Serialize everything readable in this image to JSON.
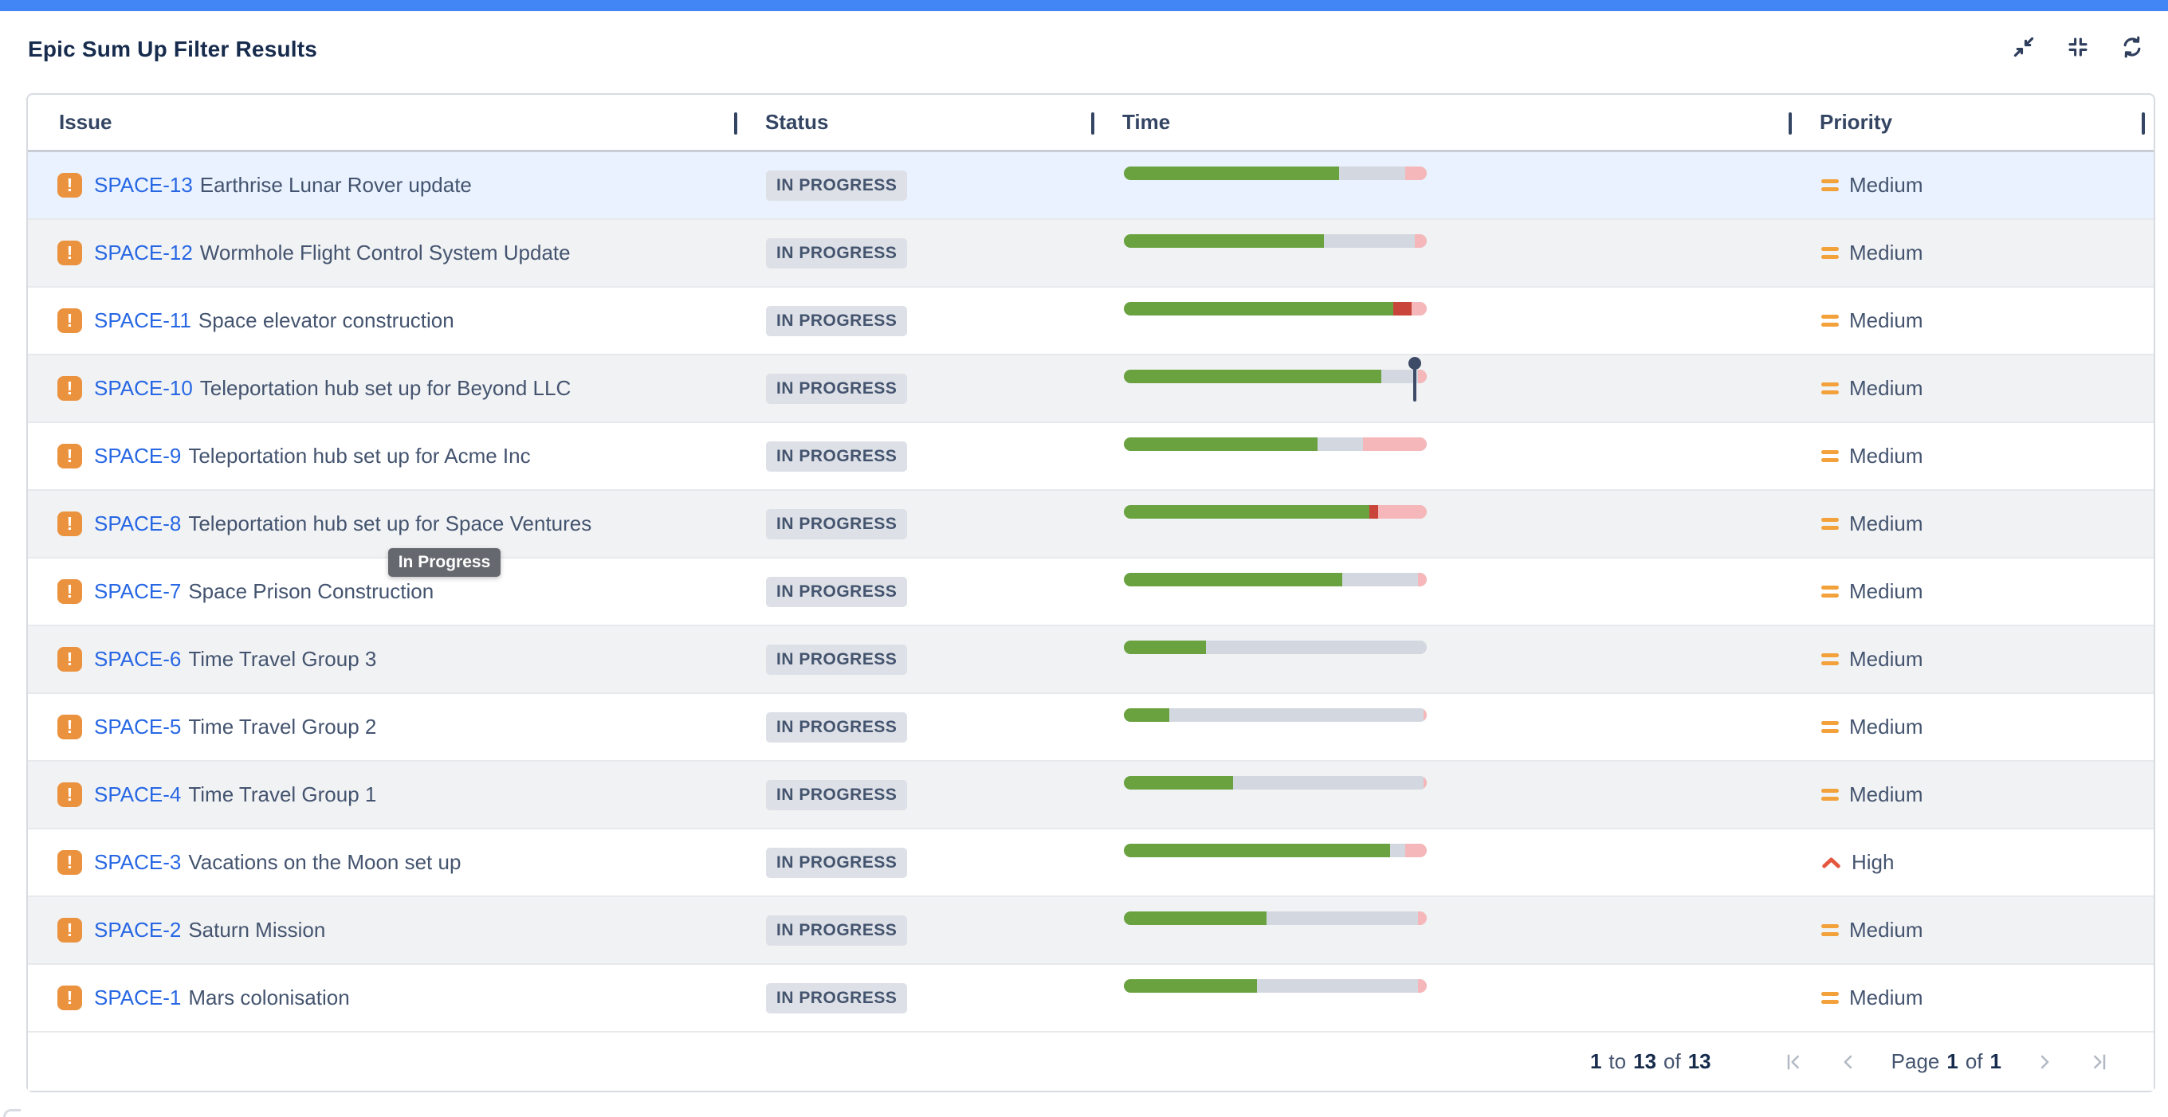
{
  "colors": {
    "accent_bar": "#4285F4",
    "title_text": "#172B4D",
    "header_text": "#344563",
    "link_blue": "#2767E4",
    "summary_text": "#44546F",
    "row_alt_bg": "#F1F2F4",
    "row_selected_bg": "#E9F2FE",
    "badge_bg": "#DDE0E6",
    "badge_text": "#44546F",
    "epic_icon_bg": "#EB923F",
    "bar_green": "#69A23F",
    "bar_gray": "#D3D7DF",
    "bar_pink": "#F5B7B9",
    "bar_red": "#C9453C",
    "pin": "#3D4B66",
    "priority_medium": "#F2A13B",
    "priority_high": "#E4573F",
    "pag_icon": "#B3BAC5",
    "tooltip_bg": "#65686E",
    "border": "#D8DBE2",
    "row_border": "#E7E9ED",
    "header_border": "#C9CDD4",
    "top_icon": "#2E3E5C"
  },
  "header": {
    "title": "Epic Sum Up Filter Results",
    "icons": [
      "exit-fullscreen-icon",
      "collapse-all-icon",
      "refresh-icon"
    ]
  },
  "table": {
    "columns": [
      {
        "label": "Issue"
      },
      {
        "label": "Status"
      },
      {
        "label": "Time"
      },
      {
        "label": "Priority"
      }
    ],
    "rows": [
      {
        "key": "SPACE-13",
        "summary": "Earthrise Lunar Rover update",
        "status": "IN PROGRESS",
        "priority": "Medium",
        "selected": true,
        "segments": [
          {
            "color": "green",
            "pct": 71
          },
          {
            "color": "gray",
            "pct": 22
          },
          {
            "color": "pink",
            "pct": 7
          }
        ]
      },
      {
        "key": "SPACE-12",
        "summary": "Wormhole Flight Control System Update",
        "status": "IN PROGRESS",
        "priority": "Medium",
        "segments": [
          {
            "color": "green",
            "pct": 66
          },
          {
            "color": "gray",
            "pct": 30
          },
          {
            "color": "pink",
            "pct": 4
          }
        ]
      },
      {
        "key": "SPACE-11",
        "summary": "Space elevator construction",
        "status": "IN PROGRESS",
        "priority": "Medium",
        "segments": [
          {
            "color": "green",
            "pct": 89
          },
          {
            "color": "red",
            "pct": 6
          },
          {
            "color": "pink",
            "pct": 5
          }
        ]
      },
      {
        "key": "SPACE-10",
        "summary": "Teleportation hub set up for Beyond LLC",
        "status": "IN PROGRESS",
        "priority": "Medium",
        "marker_pct": 96,
        "segments": [
          {
            "color": "green",
            "pct": 85
          },
          {
            "color": "gray",
            "pct": 12
          },
          {
            "color": "pink",
            "pct": 3
          }
        ]
      },
      {
        "key": "SPACE-9",
        "summary": "Teleportation hub set up for Acme Inc",
        "status": "IN PROGRESS",
        "priority": "Medium",
        "segments": [
          {
            "color": "green",
            "pct": 64
          },
          {
            "color": "gray",
            "pct": 15
          },
          {
            "color": "pink",
            "pct": 21
          }
        ]
      },
      {
        "key": "SPACE-8",
        "summary": "Teleportation hub set up for Space Ventures",
        "status": "IN PROGRESS",
        "priority": "Medium",
        "segments": [
          {
            "color": "green",
            "pct": 81
          },
          {
            "color": "red",
            "pct": 3
          },
          {
            "color": "pink",
            "pct": 16
          }
        ]
      },
      {
        "key": "SPACE-7",
        "summary": "Space Prison Construction",
        "status": "IN PROGRESS",
        "priority": "Medium",
        "segments": [
          {
            "color": "green",
            "pct": 72
          },
          {
            "color": "gray",
            "pct": 25
          },
          {
            "color": "pink",
            "pct": 3
          }
        ]
      },
      {
        "key": "SPACE-6",
        "summary": "Time Travel Group 3",
        "status": "IN PROGRESS",
        "priority": "Medium",
        "segments": [
          {
            "color": "green",
            "pct": 27
          },
          {
            "color": "gray",
            "pct": 73
          }
        ]
      },
      {
        "key": "SPACE-5",
        "summary": "Time Travel Group 2",
        "status": "IN PROGRESS",
        "priority": "Medium",
        "segments": [
          {
            "color": "green",
            "pct": 15
          },
          {
            "color": "gray",
            "pct": 84
          },
          {
            "color": "pink",
            "pct": 1
          }
        ]
      },
      {
        "key": "SPACE-4",
        "summary": "Time Travel Group 1",
        "status": "IN PROGRESS",
        "priority": "Medium",
        "segments": [
          {
            "color": "green",
            "pct": 36
          },
          {
            "color": "gray",
            "pct": 63
          },
          {
            "color": "pink",
            "pct": 1
          }
        ]
      },
      {
        "key": "SPACE-3",
        "summary": "Vacations on the Moon set up",
        "status": "IN PROGRESS",
        "priority": "High",
        "segments": [
          {
            "color": "green",
            "pct": 88
          },
          {
            "color": "gray",
            "pct": 5
          },
          {
            "color": "pink",
            "pct": 7
          }
        ]
      },
      {
        "key": "SPACE-2",
        "summary": "Saturn Mission",
        "status": "IN PROGRESS",
        "priority": "Medium",
        "segments": [
          {
            "color": "green",
            "pct": 47
          },
          {
            "color": "gray",
            "pct": 50
          },
          {
            "color": "pink",
            "pct": 3
          }
        ]
      },
      {
        "key": "SPACE-1",
        "summary": "Mars colonisation",
        "status": "IN PROGRESS",
        "priority": "Medium",
        "segments": [
          {
            "color": "green",
            "pct": 44
          },
          {
            "color": "gray",
            "pct": 53
          },
          {
            "color": "pink",
            "pct": 3
          }
        ]
      }
    ]
  },
  "tooltip": {
    "text": "In Progress"
  },
  "pagination": {
    "start": "1",
    "to_word": "to",
    "end": "13",
    "of_word": "of",
    "total": "13",
    "page_word": "Page",
    "page_number": "1",
    "of_word2": "of",
    "page_total": "1"
  }
}
